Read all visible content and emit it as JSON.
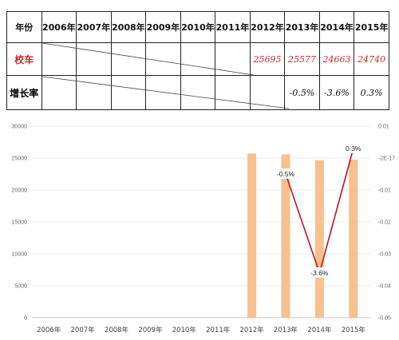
{
  "table": {
    "header_label": "年份",
    "years": [
      "2006年",
      "2007年",
      "2008年",
      "2009年",
      "2010年",
      "2011年",
      "2012年",
      "2013年",
      "2014年",
      "2015年"
    ],
    "row1_label": "校车",
    "row1_values": [
      "",
      "",
      "",
      "",
      "",
      "",
      "25695",
      "25577",
      "24663",
      "24740"
    ],
    "row2_label": "增长率",
    "row2_values": [
      "",
      "",
      "",
      "",
      "",
      "",
      "",
      "-0.5%",
      "-3.6%",
      "0.3%"
    ]
  },
  "chart_data": {
    "type": "bar",
    "categories": [
      "2006年",
      "2007年",
      "2008年",
      "2009年",
      "2010年",
      "2011年",
      "2012年",
      "2013年",
      "2014年",
      "2015年"
    ],
    "series": [
      {
        "type": "bar",
        "values": [
          null,
          null,
          null,
          null,
          null,
          null,
          25695,
          25577,
          24663,
          24740
        ],
        "color": "#f8c08f"
      },
      {
        "type": "line",
        "axis": "right",
        "values": [
          null,
          null,
          null,
          null,
          null,
          null,
          null,
          -0.005,
          -0.036,
          0.003
        ],
        "labels": [
          "",
          "",
          "",
          "",
          "",
          "",
          "",
          "-0.5%",
          "-3.6%",
          "0.3%"
        ],
        "color": "#c0141b"
      }
    ],
    "left_axis": {
      "ticks": [
        "30000",
        "25000",
        "20000",
        "15000",
        "10000",
        "5000",
        "0"
      ],
      "ylim": [
        0,
        30000
      ]
    },
    "right_axis": {
      "ticks": [
        "0.01",
        "-2E-17",
        "-0.01",
        "-0.02",
        "-0.03",
        "-0.04",
        "-0.05"
      ],
      "ylim": [
        -0.05,
        0.01
      ]
    },
    "grid": true
  }
}
